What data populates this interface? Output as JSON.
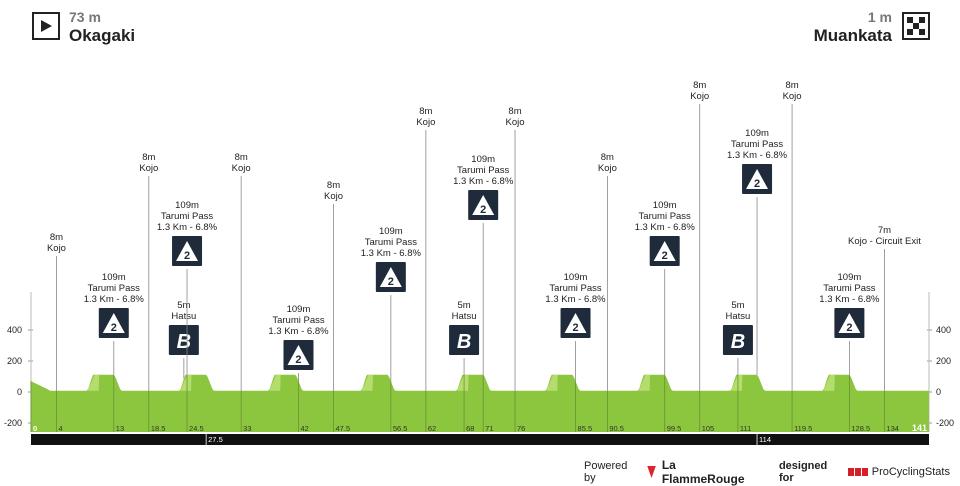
{
  "start": {
    "altitude": "73 m",
    "name": "Okagaki",
    "icon": "play-icon"
  },
  "finish": {
    "altitude": "1 m",
    "name": "Muankata",
    "icon": "checkered-flag-icon"
  },
  "y_axis_ticks": [
    "400",
    "200",
    "0",
    "-200"
  ],
  "distance_ticks": [
    "0",
    "4",
    "13",
    "18.5",
    "24.5",
    "33",
    "42",
    "47.5",
    "56.5",
    "62",
    "68",
    "71",
    "76",
    "85.5",
    "90.5",
    "99.5",
    "105",
    "111",
    "119.5",
    "128.5",
    "134"
  ],
  "distance_ticks_below": [
    "27.5",
    "114"
  ],
  "end_distance": "141",
  "markers": [
    {
      "km": 4,
      "lines": [
        "8m",
        "Kojo"
      ],
      "badge": ""
    },
    {
      "km": 13,
      "lines": [
        "109m",
        "Tarumi Pass",
        "1.3 Km - 6.8%"
      ],
      "badge": "2"
    },
    {
      "km": 18.5,
      "lines": [
        "8m",
        "Kojo"
      ],
      "badge": ""
    },
    {
      "km": 24,
      "lines": [
        "5m",
        "Hatsu"
      ],
      "badge": "B"
    },
    {
      "km": 24.5,
      "lines": [
        "109m",
        "Tarumi Pass",
        "1.3 Km - 6.8%"
      ],
      "badge": "2"
    },
    {
      "km": 33,
      "lines": [
        "8m",
        "Kojo"
      ],
      "badge": ""
    },
    {
      "km": 42,
      "lines": [
        "109m",
        "Tarumi Pass",
        "1.3 Km - 6.8%"
      ],
      "badge": "2"
    },
    {
      "km": 47.5,
      "lines": [
        "8m",
        "Kojo"
      ],
      "badge": ""
    },
    {
      "km": 56.5,
      "lines": [
        "109m",
        "Tarumi Pass",
        "1.3 Km - 6.8%"
      ],
      "badge": "2"
    },
    {
      "km": 62,
      "lines": [
        "8m",
        "Kojo"
      ],
      "badge": ""
    },
    {
      "km": 68,
      "lines": [
        "5m",
        "Hatsu"
      ],
      "badge": "B"
    },
    {
      "km": 71,
      "lines": [
        "109m",
        "Tarumi Pass",
        "1.3 Km - 6.8%"
      ],
      "badge": "2"
    },
    {
      "km": 76,
      "lines": [
        "8m",
        "Kojo"
      ],
      "badge": ""
    },
    {
      "km": 85.5,
      "lines": [
        "109m",
        "Tarumi Pass",
        "1.3 Km - 6.8%"
      ],
      "badge": "2"
    },
    {
      "km": 90.5,
      "lines": [
        "8m",
        "Kojo"
      ],
      "badge": ""
    },
    {
      "km": 99.5,
      "lines": [
        "109m",
        "Tarumi Pass",
        "1.3 Km - 6.8%"
      ],
      "badge": "2"
    },
    {
      "km": 105,
      "lines": [
        "8m",
        "Kojo"
      ],
      "badge": ""
    },
    {
      "km": 111,
      "lines": [
        "5m",
        "Hatsu"
      ],
      "badge": "B"
    },
    {
      "km": 114,
      "lines": [
        "109m",
        "Tarumi Pass",
        "1.3 Km - 6.8%"
      ],
      "badge": "2"
    },
    {
      "km": 119.5,
      "lines": [
        "8m",
        "Kojo"
      ],
      "badge": ""
    },
    {
      "km": 128.5,
      "lines": [
        "109m",
        "Tarumi Pass",
        "1.3 Km - 6.8%"
      ],
      "badge": "2"
    },
    {
      "km": 134,
      "lines": [
        "7m",
        "Kojo - Circuit Exit"
      ],
      "badge": ""
    }
  ],
  "climbs_km": [
    11.5,
    26,
    40,
    54.5,
    69.5,
    83.5,
    98,
    112.5,
    127
  ],
  "footer": {
    "powered_by": "Powered by",
    "brand": "La FlammeRouge",
    "designed_for": "designed for",
    "pcs_name": "ProCyclingStats"
  },
  "colors": {
    "terrain": "#8cc63f",
    "terrain_light": "#b5dd6e",
    "badge": "#1f2a3a",
    "distance_bar": "#111111"
  }
}
